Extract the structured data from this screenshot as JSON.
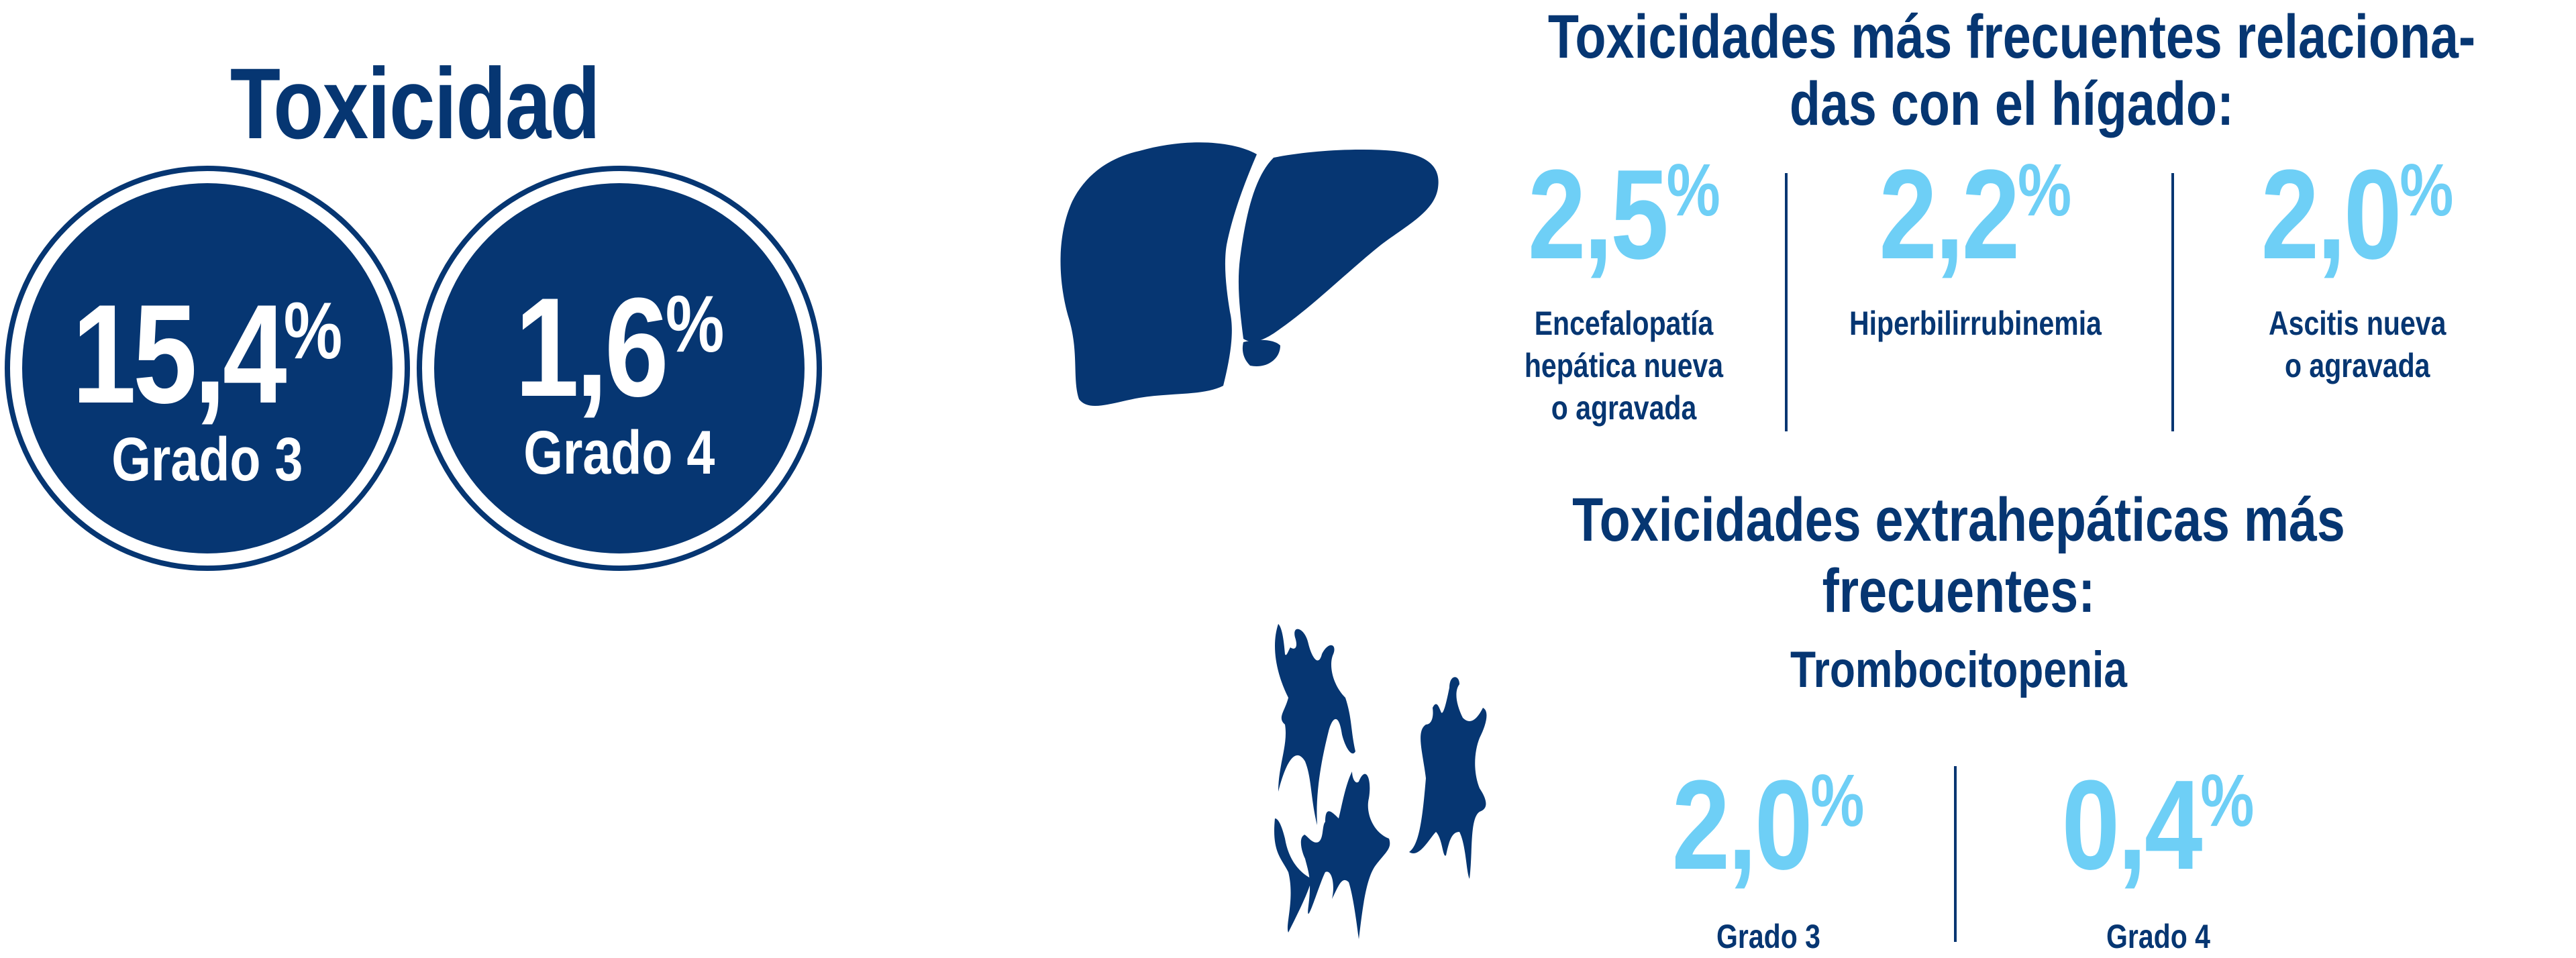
{
  "colors": {
    "navy": "#063672",
    "light_blue": "#6ecff6"
  },
  "left": {
    "title": "Toxicidad",
    "circles": [
      {
        "value": "15,4",
        "unit": "%",
        "label": "Grado 3"
      },
      {
        "value": "1,6",
        "unit": "%",
        "label": "Grado 4"
      }
    ]
  },
  "liver_section": {
    "icon": "liver-icon",
    "title_line1": "Toxicidades más frecuentes relaciona-",
    "title_line2": "das con el hígado:",
    "stats": [
      {
        "value": "2,5",
        "unit": "%",
        "label_lines": [
          "Encefalopatía",
          "hepática nueva",
          "o agravada"
        ]
      },
      {
        "value": "2,2",
        "unit": "%",
        "label_lines": [
          "Hiperbilirrubinemia"
        ]
      },
      {
        "value": "2,0",
        "unit": "%",
        "label_lines": [
          "Ascitis nueva",
          "o agravada"
        ]
      }
    ]
  },
  "extra_section": {
    "icon": "platelets-icon",
    "title_line1": "Toxicidades extrahepáticas más",
    "title_line2": "frecuentes:",
    "subtitle": "Trombocitopenia",
    "stats": [
      {
        "value": "2,0",
        "unit": "%",
        "label": "Grado 3"
      },
      {
        "value": "0,4",
        "unit": "%",
        "label": "Grado 4"
      }
    ]
  }
}
